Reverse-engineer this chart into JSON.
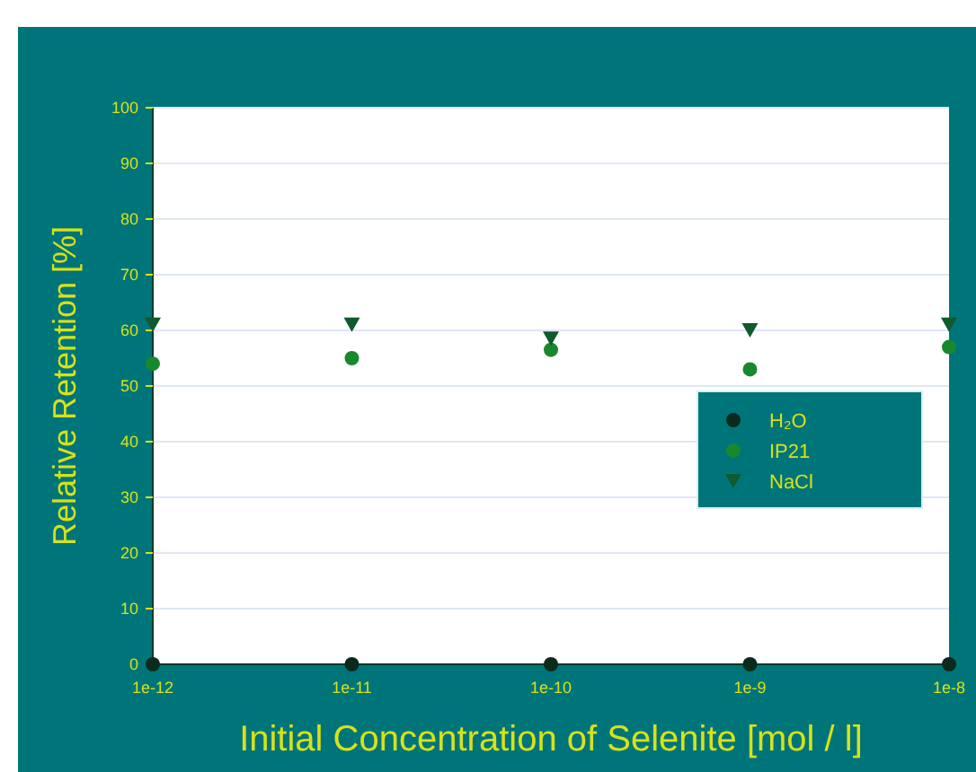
{
  "chart_data": {
    "type": "scatter",
    "xlabel": "Initial Concentration of Selenite [mol / l]",
    "ylabel": "Relative Retention [%]",
    "x": [
      1e-12,
      1e-11,
      1e-10,
      1e-09,
      1e-08
    ],
    "log": "x",
    "xlim": [
      1e-12,
      1e-08
    ],
    "xticks": [
      {
        "value": 1e-12,
        "label": "1e-12"
      },
      {
        "value": 1e-11,
        "label": "1e-11"
      },
      {
        "value": 1e-10,
        "label": "1e-10"
      },
      {
        "value": 1e-09,
        "label": "1e-9"
      },
      {
        "value": 1e-08,
        "label": "1e-8"
      }
    ],
    "ylim": [
      0,
      100
    ],
    "yticks": [
      0,
      10,
      20,
      30,
      40,
      50,
      60,
      70,
      80,
      90,
      100
    ],
    "grid": "y",
    "legend": "right",
    "series": [
      {
        "name": "H₂O",
        "color": "#0b2a1c",
        "marker": "circle",
        "values": [
          0,
          0,
          0,
          0,
          0
        ]
      },
      {
        "name": "IP21",
        "color": "#17882c",
        "marker": "circle",
        "values": [
          54,
          55,
          56.5,
          53,
          57
        ]
      },
      {
        "name": "NaCl",
        "color": "#0f5a2e",
        "marker": "triangle",
        "values": [
          61,
          61,
          58.5,
          60,
          61
        ]
      }
    ]
  }
}
